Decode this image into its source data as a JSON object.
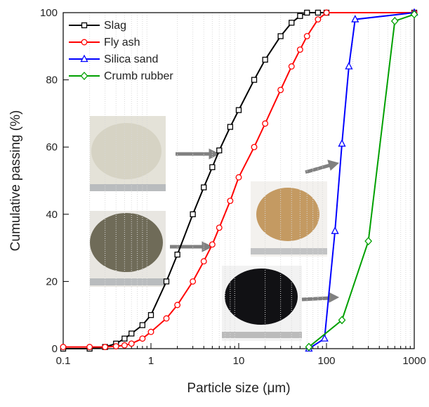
{
  "chart_data": {
    "type": "line",
    "xlabel": "Particle size (μm)",
    "ylabel": "Cumulative passing (%)",
    "xscale": "log",
    "xlim": [
      0.1,
      1000
    ],
    "ylim": [
      0,
      100
    ],
    "xticks": [
      0.1,
      1,
      10,
      100,
      1000
    ],
    "yticks": [
      0,
      20,
      40,
      60,
      80,
      100
    ],
    "grid": true,
    "legend": "upper left",
    "series": [
      {
        "name": "Slag",
        "color": "#000000",
        "marker": "square",
        "x": [
          0.1,
          0.2,
          0.3,
          0.4,
          0.5,
          0.6,
          0.8,
          1,
          1.5,
          2,
          3,
          4,
          5,
          6,
          8,
          10,
          15,
          20,
          30,
          40,
          50,
          60,
          80,
          100,
          1000
        ],
        "values": [
          0,
          0,
          0.5,
          1.5,
          3,
          4.5,
          7,
          10,
          20,
          28,
          40,
          48,
          54,
          59,
          66,
          71,
          80,
          86,
          93,
          97,
          99,
          100,
          100,
          100,
          100
        ]
      },
      {
        "name": "Fly ash",
        "color": "#ff0000",
        "marker": "circle",
        "x": [
          0.1,
          0.2,
          0.3,
          0.4,
          0.5,
          0.6,
          0.8,
          1,
          1.5,
          2,
          3,
          4,
          5,
          6,
          8,
          10,
          15,
          20,
          30,
          40,
          50,
          60,
          80,
          100,
          1000
        ],
        "values": [
          0.5,
          0.5,
          0.5,
          0.7,
          1,
          1.5,
          3,
          5,
          9,
          13,
          20,
          26,
          31,
          36,
          44,
          51,
          60,
          67,
          77,
          84,
          89,
          93,
          98,
          100,
          100
        ]
      },
      {
        "name": "Silica sand",
        "color": "#0000ff",
        "marker": "triangle",
        "x": [
          63,
          95,
          125,
          150,
          180,
          212,
          1000
        ],
        "values": [
          0,
          3,
          35,
          61,
          84,
          98,
          100
        ]
      },
      {
        "name": "Crumb rubber",
        "color": "#00a000",
        "marker": "diamond",
        "x": [
          63,
          150,
          300,
          600,
          1000
        ],
        "values": [
          0.5,
          8.5,
          32,
          97.5,
          99.5
        ]
      }
    ]
  }
}
